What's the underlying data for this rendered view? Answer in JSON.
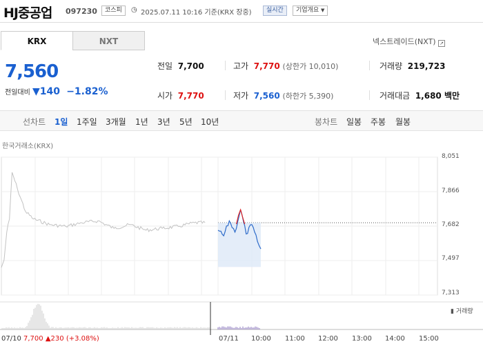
{
  "header": {
    "name": "HJ중공업",
    "code": "097230",
    "market_badge": "코스피",
    "datetime": "2025.07.11 10:16 기준(KRX 장중)",
    "live_badge": "실시간",
    "info_button": "기업개요",
    "info_icon": "chevron-down-icon"
  },
  "tabs": {
    "krx": "KRX",
    "nxt": "NXT",
    "nxt_link": "넥스트레이드(NXT)"
  },
  "price": {
    "current": "7,560",
    "change_label": "전일대비",
    "change": "140",
    "change_pct": "−1.82%"
  },
  "quote": {
    "prev_label": "전일",
    "prev_value": "7,700",
    "high_label": "고가",
    "high_value": "7,770",
    "upper_label": "(상한가 10,010)",
    "volume_label": "거래량",
    "volume_value": "219,723",
    "open_label": "시가",
    "open_value": "7,770",
    "low_label": "저가",
    "low_value": "7,560",
    "lower_label": "(하한가 5,390)",
    "amount_label": "거래대금",
    "amount_value": "1,680 백만"
  },
  "periods": {
    "line_label": "선차트",
    "items": [
      "1일",
      "1주일",
      "3개월",
      "1년",
      "3년",
      "5년",
      "10년"
    ],
    "candle_label": "봉차트",
    "candle_items": [
      "일봉",
      "주봉",
      "월봉"
    ]
  },
  "chart_data": {
    "type": "line",
    "title": "한국거래소(KRX)",
    "y_ticks": [
      "8,051",
      "7,866",
      "7,682",
      "7,497",
      "7,313"
    ],
    "ylim": [
      7313,
      8051
    ],
    "x_ticks": [
      "07/10",
      "07/11",
      "10:00",
      "11:00",
      "12:00",
      "13:00",
      "14:00",
      "15:00"
    ],
    "prev_close": 7700,
    "volume_label": "거래량",
    "series": [
      {
        "name": "07/10",
        "x": [
          "09:00",
          "09:05",
          "09:10",
          "09:15",
          "09:20",
          "09:30",
          "09:45",
          "10:00",
          "10:30",
          "11:00",
          "11:30",
          "12:00",
          "12:30",
          "13:00",
          "13:30",
          "14:00",
          "14:30",
          "15:00",
          "15:20"
        ],
        "values": [
          7460,
          7500,
          7650,
          7720,
          7970,
          7880,
          7760,
          7720,
          7690,
          7680,
          7700,
          7710,
          7670,
          7690,
          7660,
          7670,
          7680,
          7700,
          7700
        ]
      },
      {
        "name": "07/11",
        "x": [
          "09:00",
          "09:10",
          "09:20",
          "09:30",
          "09:40",
          "09:50",
          "10:00",
          "10:10",
          "10:16"
        ],
        "values": [
          7660,
          7630,
          7710,
          7650,
          7770,
          7640,
          7690,
          7600,
          7560
        ]
      }
    ]
  },
  "footer": {
    "prev_day": "07/10",
    "prev_close": "7,700",
    "prev_change": "230",
    "prev_pct": "(+3.08%)"
  }
}
